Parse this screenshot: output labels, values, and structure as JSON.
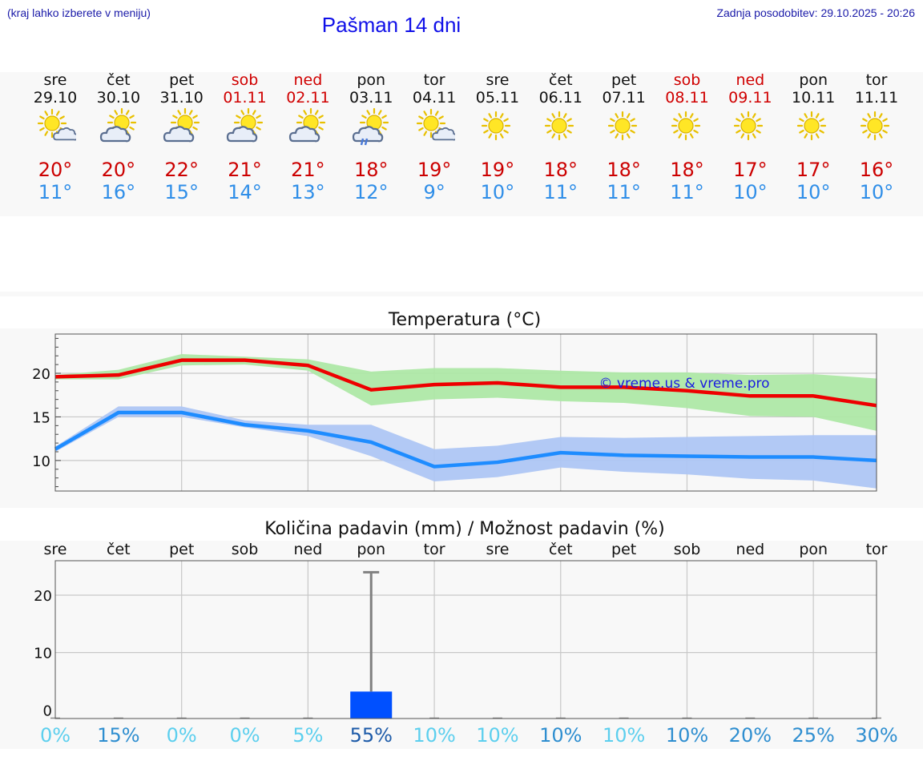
{
  "header": {
    "left_note": "(kraj lahko izberete v meniju)",
    "title": "Pašman 14 dni",
    "updated": "Zadnja posodobitev: 29.10.2025 - 20:26"
  },
  "colors": {
    "max_temp": "#cc0000",
    "min_temp": "#2f8ee8",
    "weekend": "#d00000",
    "max_band": "#aee8a6",
    "min_band": "#aec6f4",
    "precip_bar": "#0050ff"
  },
  "days": [
    {
      "name": "sre",
      "date": "29.10",
      "weekend": false,
      "icon": "sun-cloud-small-icon",
      "max": "20°",
      "min": "11°"
    },
    {
      "name": "čet",
      "date": "30.10",
      "weekend": false,
      "icon": "cloud-sun-icon",
      "max": "20°",
      "min": "16°"
    },
    {
      "name": "pet",
      "date": "31.10",
      "weekend": false,
      "icon": "cloud-sun-icon",
      "max": "22°",
      "min": "15°"
    },
    {
      "name": "sob",
      "date": "01.11",
      "weekend": true,
      "icon": "cloud-sun-icon",
      "max": "21°",
      "min": "14°"
    },
    {
      "name": "ned",
      "date": "02.11",
      "weekend": true,
      "icon": "cloud-sun-icon",
      "max": "21°",
      "min": "13°"
    },
    {
      "name": "pon",
      "date": "03.11",
      "weekend": false,
      "icon": "cloud-sun-rain-icon",
      "max": "18°",
      "min": "12°"
    },
    {
      "name": "tor",
      "date": "04.11",
      "weekend": false,
      "icon": "sun-cloud-small-icon",
      "max": "19°",
      "min": "9°"
    },
    {
      "name": "sre",
      "date": "05.11",
      "weekend": false,
      "icon": "sun-icon",
      "max": "19°",
      "min": "10°"
    },
    {
      "name": "čet",
      "date": "06.11",
      "weekend": false,
      "icon": "sun-icon",
      "max": "18°",
      "min": "11°"
    },
    {
      "name": "pet",
      "date": "07.11",
      "weekend": false,
      "icon": "sun-icon",
      "max": "18°",
      "min": "11°"
    },
    {
      "name": "sob",
      "date": "08.11",
      "weekend": true,
      "icon": "sun-icon",
      "max": "18°",
      "min": "11°"
    },
    {
      "name": "ned",
      "date": "09.11",
      "weekend": true,
      "icon": "sun-icon",
      "max": "17°",
      "min": "10°"
    },
    {
      "name": "pon",
      "date": "10.11",
      "weekend": false,
      "icon": "sun-icon",
      "max": "17°",
      "min": "10°"
    },
    {
      "name": "tor",
      "date": "11.11",
      "weekend": false,
      "icon": "sun-icon",
      "max": "16°",
      "min": "10°"
    }
  ],
  "chart_data": [
    {
      "type": "line",
      "title": "Temperatura (°C)",
      "watermark": "© vreme.us & vreme.pro",
      "x": [
        0,
        1,
        2,
        3,
        4,
        5,
        6,
        7,
        8,
        9,
        10,
        11,
        12,
        13
      ],
      "ylim": [
        6.5,
        24.5
      ],
      "yticks": [
        10,
        15,
        20
      ],
      "grid": true,
      "series": [
        {
          "name": "max",
          "values": [
            19.6,
            19.8,
            21.5,
            21.5,
            20.9,
            18.1,
            18.7,
            18.9,
            18.4,
            18.4,
            18.0,
            17.4,
            17.4,
            16.3
          ],
          "band_low": [
            19.3,
            19.3,
            20.9,
            21.0,
            20.3,
            16.3,
            17.0,
            17.2,
            16.8,
            16.6,
            16.0,
            15.1,
            15.0,
            13.4
          ],
          "band_high": [
            19.8,
            20.4,
            22.2,
            21.9,
            21.6,
            20.2,
            20.6,
            20.6,
            20.3,
            20.1,
            20.1,
            19.8,
            19.9,
            19.4
          ]
        },
        {
          "name": "min",
          "values": [
            11.3,
            15.5,
            15.5,
            14.1,
            13.4,
            12.1,
            9.3,
            9.8,
            10.9,
            10.6,
            10.5,
            10.4,
            10.4,
            10.0
          ],
          "band_low": [
            11.0,
            15.0,
            15.0,
            13.8,
            12.8,
            10.5,
            7.6,
            8.1,
            9.2,
            8.7,
            8.4,
            7.9,
            7.7,
            6.8
          ],
          "band_high": [
            11.6,
            16.2,
            16.2,
            14.6,
            14.1,
            14.1,
            11.3,
            11.7,
            12.7,
            12.6,
            12.7,
            12.8,
            12.9,
            12.9
          ]
        }
      ]
    },
    {
      "type": "bar",
      "title": "Količina padavin (mm) / Možnost padavin (%)",
      "categories": [
        "sre",
        "čet",
        "pet",
        "sob",
        "ned",
        "pon",
        "tor",
        "sre",
        "čet",
        "pet",
        "sob",
        "ned",
        "pon",
        "tor"
      ],
      "values": [
        0,
        0,
        0,
        0,
        0,
        3.2,
        0,
        0,
        0,
        0,
        0,
        0,
        0,
        0
      ],
      "error_high": [
        0,
        0,
        0,
        0,
        0,
        24,
        0,
        0,
        0,
        0,
        0,
        0,
        0,
        0
      ],
      "probability": [
        "0%",
        "15%",
        "0%",
        "0%",
        "5%",
        "55%",
        "10%",
        "10%",
        "10%",
        "10%",
        "10%",
        "20%",
        "25%",
        "30%"
      ],
      "prob_colors": [
        "#5ccfee",
        "#2e8ed0",
        "#5ccfee",
        "#5ccfee",
        "#5ccfee",
        "#1c5aa8",
        "#5ccfee",
        "#5ccfee",
        "#2e8ed0",
        "#5ccfee",
        "#2e8ed0",
        "#2e8ed0",
        "#2e8ed0",
        "#2e8ed0"
      ],
      "ylim": [
        -1.5,
        26
      ],
      "yticks": [
        0,
        10,
        20
      ],
      "grid": true
    }
  ]
}
